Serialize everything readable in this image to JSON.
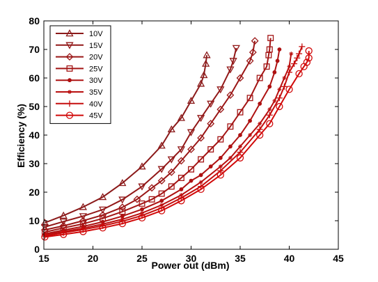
{
  "chart_data": {
    "type": "line",
    "xlabel": "Power out (dBm)",
    "ylabel": "Efficiency (%)",
    "xlim": [
      15,
      45
    ],
    "ylim": [
      0,
      80
    ],
    "xticks": [
      "15",
      "20",
      "25",
      "30",
      "35",
      "40",
      "45"
    ],
    "yticks": [
      "0",
      "10",
      "20",
      "30",
      "40",
      "50",
      "60",
      "70",
      "80"
    ],
    "grid": false,
    "legend_position": "top-left",
    "series": [
      {
        "name": "10V",
        "marker": "triangle-up",
        "color": "#8B1A1A",
        "x": [
          15.1,
          17.0,
          19.0,
          21.0,
          23.0,
          25.0,
          27.0,
          28.0,
          29.0,
          30.0,
          31.0,
          31.3,
          31.5,
          31.6
        ],
        "y": [
          9.3,
          11.8,
          14.8,
          18.3,
          23.2,
          29.0,
          36.3,
          42.0,
          46.0,
          52.0,
          58.0,
          61.0,
          65.0,
          68.0
        ]
      },
      {
        "name": "15V",
        "marker": "triangle-down",
        "color": "#921818",
        "x": [
          15.1,
          17.0,
          19.0,
          21.0,
          23.0,
          25.0,
          27.0,
          28.0,
          29.0,
          30.0,
          31.0,
          32.0,
          33.0,
          34.0,
          34.3,
          34.6
        ],
        "y": [
          7.8,
          9.7,
          11.6,
          13.9,
          17.4,
          22.0,
          28.1,
          31.5,
          35.0,
          41.0,
          46.0,
          51.0,
          56.0,
          63.0,
          66.0,
          70.5
        ]
      },
      {
        "name": "20V",
        "marker": "diamond",
        "color": "#9A1616",
        "x": [
          15.1,
          17.0,
          19.0,
          21.0,
          23.0,
          24.5,
          26.0,
          27.0,
          28.0,
          29.0,
          30.0,
          31.0,
          32.0,
          33.0,
          34.0,
          35.0,
          36.0,
          36.3,
          36.5
        ],
        "y": [
          6.8,
          8.2,
          10.0,
          12.0,
          14.7,
          17.5,
          21.5,
          24.0,
          27.0,
          31.0,
          35.0,
          39.0,
          44.0,
          49.0,
          54.0,
          60.0,
          66.0,
          69.0,
          73.0
        ]
      },
      {
        "name": "25V",
        "marker": "square",
        "color": "#A31414",
        "x": [
          15.1,
          17.0,
          19.0,
          21.0,
          23.0,
          25.0,
          26.0,
          27.0,
          28.0,
          29.0,
          30.0,
          31.0,
          32.0,
          33.0,
          34.0,
          35.0,
          36.0,
          37.0,
          37.7,
          37.9,
          38.0,
          38.1
        ],
        "y": [
          6.0,
          7.5,
          8.9,
          10.8,
          13.2,
          16.0,
          17.5,
          19.5,
          22.0,
          25.0,
          28.0,
          31.5,
          35.0,
          38.5,
          43.0,
          48.0,
          53.0,
          60.0,
          64.0,
          68.0,
          70.0,
          74.0
        ]
      },
      {
        "name": "30V",
        "marker": "dot",
        "color": "#AE1111",
        "x": [
          15.1,
          17.0,
          19.0,
          21.0,
          23.0,
          25.0,
          27.0,
          29.0,
          30.0,
          31.0,
          32.0,
          33.0,
          34.0,
          35.0,
          36.0,
          37.0,
          38.0,
          38.5,
          38.8,
          39.0
        ],
        "y": [
          5.4,
          6.7,
          8.0,
          9.6,
          11.6,
          14.0,
          17.0,
          21.0,
          24.0,
          26.0,
          29.0,
          32.0,
          36.0,
          40.0,
          45.0,
          51.0,
          57.0,
          62.0,
          66.0,
          70.0
        ]
      },
      {
        "name": "35V",
        "marker": "star",
        "color": "#B90F0F",
        "x": [
          15.1,
          17.0,
          19.0,
          21.0,
          23.0,
          25.0,
          27.0,
          29.0,
          31.0,
          33.0,
          34.0,
          35.0,
          36.0,
          37.0,
          38.0,
          38.5,
          39.0,
          39.5,
          40.0,
          40.2
        ],
        "y": [
          5.0,
          6.2,
          7.4,
          8.8,
          10.5,
          12.7,
          15.5,
          19.0,
          23.5,
          29.0,
          32.0,
          36.0,
          40.0,
          44.0,
          49.0,
          52.0,
          56.0,
          60.0,
          64.0,
          68.5
        ]
      },
      {
        "name": "40V",
        "marker": "plus",
        "color": "#C50C0C",
        "x": [
          15.1,
          17.0,
          19.0,
          21.0,
          23.0,
          25.0,
          27.0,
          29.0,
          31.0,
          33.0,
          35.0,
          37.0,
          38.0,
          39.0,
          39.5,
          40.0,
          40.5,
          40.8,
          41.0,
          41.3
        ],
        "y": [
          4.6,
          5.8,
          6.9,
          8.2,
          9.8,
          11.8,
          14.5,
          18.0,
          22.0,
          27.5,
          34.0,
          42.0,
          47.0,
          53.0,
          57.0,
          62.0,
          65.0,
          67.0,
          68.5,
          71.0
        ]
      },
      {
        "name": "45V",
        "marker": "circle",
        "color": "#D10909",
        "x": [
          15.1,
          17.0,
          19.0,
          21.0,
          23.0,
          25.0,
          27.0,
          29.0,
          31.0,
          33.0,
          35.0,
          37.0,
          38.0,
          39.0,
          40.0,
          41.0,
          41.5,
          41.8,
          42.0,
          42.0
        ],
        "y": [
          4.3,
          5.2,
          6.2,
          7.5,
          9.0,
          11.0,
          13.5,
          17.0,
          21.0,
          26.0,
          32.0,
          40.0,
          44.0,
          50.0,
          56.0,
          61.5,
          64.0,
          65.5,
          67.0,
          69.5
        ]
      }
    ]
  }
}
